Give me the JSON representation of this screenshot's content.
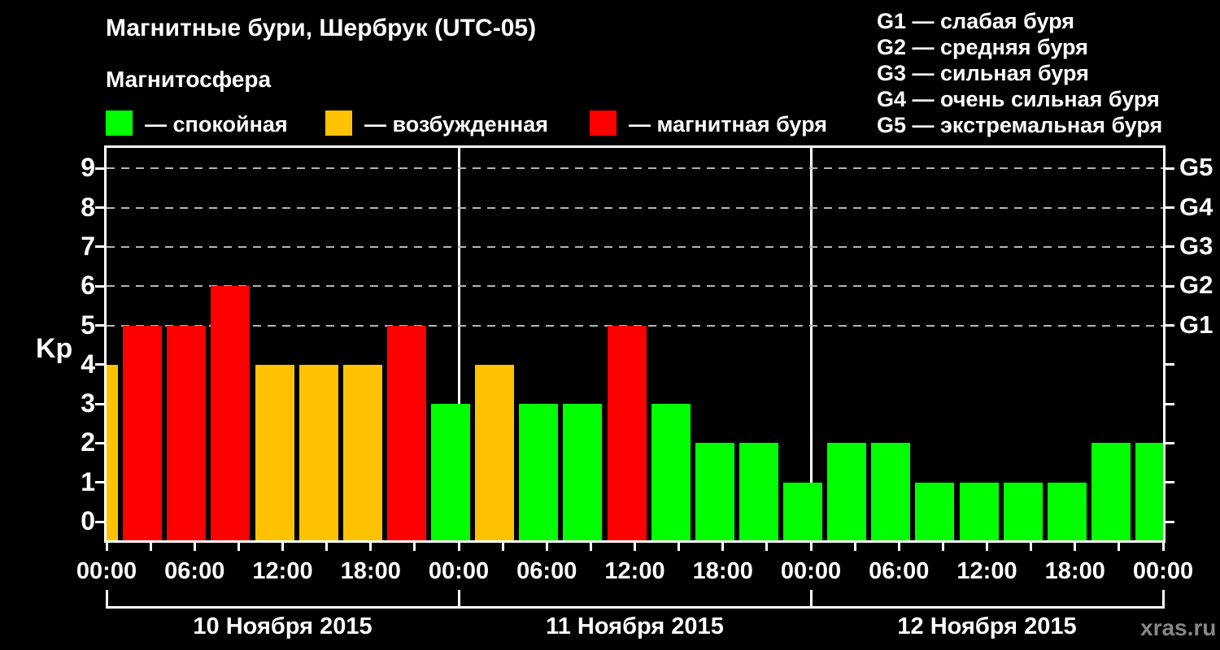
{
  "title": "Магнитные бури, Шербрук (UTC-05)",
  "subtitle": "Магнитосфера",
  "magnetosphere_legend": {
    "items": [
      {
        "category": "calm",
        "label": "— спокойная"
      },
      {
        "category": "excited",
        "label": "— возбужденная"
      },
      {
        "category": "storm",
        "label": "— магнитная буря"
      }
    ]
  },
  "storm_scale_legend": {
    "items": [
      {
        "code": "G1",
        "label": "слабая буря"
      },
      {
        "code": "G2",
        "label": "средняя буря"
      },
      {
        "code": "G3",
        "label": "сильная буря"
      },
      {
        "code": "G4",
        "label": "очень сильная буря"
      },
      {
        "code": "G5",
        "label": "экстремальная буря"
      }
    ],
    "separator": " — "
  },
  "watermark": "xras.ru",
  "chart_data": {
    "type": "bar",
    "ylabel": "Kp",
    "ylim": [
      0,
      9
    ],
    "grid": true,
    "grid_levels": [
      5,
      6,
      7,
      8,
      9
    ],
    "x_hours": [
      0,
      3,
      6,
      9,
      12,
      15,
      18,
      21,
      24,
      27,
      30,
      33,
      36,
      39,
      42,
      45,
      48,
      51,
      54,
      57,
      60,
      63,
      66,
      69,
      72
    ],
    "values": [
      4,
      5,
      5,
      6,
      4,
      4,
      4,
      5,
      3,
      4,
      3,
      3,
      5,
      3,
      2,
      2,
      1,
      2,
      2,
      1,
      1,
      1,
      1,
      2,
      2
    ],
    "categories": [
      "excited",
      "storm",
      "storm",
      "storm",
      "excited",
      "excited",
      "excited",
      "storm",
      "calm",
      "excited",
      "calm",
      "calm",
      "storm",
      "calm",
      "calm",
      "calm",
      "calm",
      "calm",
      "calm",
      "calm",
      "calm",
      "calm",
      "calm",
      "calm",
      "calm"
    ],
    "palette": {
      "calm": "#00ff00",
      "excited": "#ffc200",
      "storm": "#ff0000"
    },
    "axis_color": "#ffffff",
    "gridline_color": "#b4b4b4",
    "x_tick_interval_hours": 3,
    "x_label_interval_hours": 6,
    "time_label_cycle": [
      "00:00",
      "06:00",
      "12:00",
      "18:00"
    ],
    "y_tick_labels": [
      "0",
      "1",
      "2",
      "3",
      "4",
      "5",
      "6",
      "7",
      "8",
      "9"
    ],
    "right_axis": [
      {
        "label": "G1",
        "kp": 5
      },
      {
        "label": "G2",
        "kp": 6
      },
      {
        "label": "G3",
        "kp": 7
      },
      {
        "label": "G4",
        "kp": 8
      },
      {
        "label": "G5",
        "kp": 9
      }
    ],
    "days": [
      {
        "date": "10 Ноября 2015"
      },
      {
        "date": "11 Ноября 2015"
      },
      {
        "date": "12 Ноября 2015"
      }
    ],
    "legend_position": "top",
    "background": "#000000"
  }
}
